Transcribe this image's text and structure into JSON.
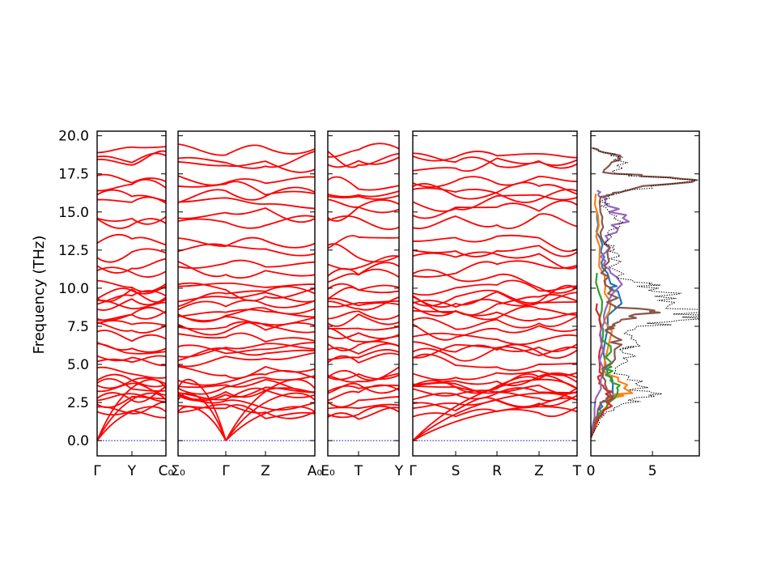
{
  "chart_data": {
    "type": "line",
    "ylabel": "Frequency (THz)",
    "ylim": [
      -1.0,
      20.3
    ],
    "yticks": [
      "0.0",
      "2.5",
      "5.0",
      "7.5",
      "10.0",
      "12.5",
      "15.0",
      "17.5",
      "20.0"
    ],
    "ytick_values": [
      0.0,
      2.5,
      5.0,
      7.5,
      10.0,
      12.5,
      15.0,
      17.5,
      20.0
    ],
    "band_color": "#ff0000",
    "zero_line_color": "#0000cc",
    "band_panels": [
      {
        "kpoints": [
          "Γ",
          "Y",
          "C₀"
        ]
      },
      {
        "kpoints": [
          "Σ₀",
          "Γ",
          "Z",
          "A₀"
        ]
      },
      {
        "kpoints": [
          "E₀",
          "T",
          "Y"
        ]
      },
      {
        "kpoints": [
          "Γ",
          "S",
          "R",
          "Z",
          "T"
        ]
      }
    ],
    "band_levels": {
      "optical": [
        1.9,
        2.2,
        2.6,
        2.9,
        3.1,
        3.3,
        3.6,
        3.9,
        4.1,
        4.4,
        5.3,
        5.6,
        5.9,
        6.1,
        6.9,
        7.2,
        7.7,
        8.1,
        8.4,
        8.7,
        9.0,
        9.3,
        9.6,
        9.8,
        10.5,
        11.3,
        11.8,
        12.4,
        13.0,
        14.4,
        15.0,
        15.7,
        16.1,
        16.4,
        17.0,
        18.2,
        18.5,
        19.0
      ]
    },
    "dos": {
      "xlim": [
        0,
        8.8
      ],
      "xticks": [
        "0",
        "5"
      ],
      "xtick_values": [
        0,
        5
      ],
      "total_color": "#000000",
      "series": [
        {
          "color": "#1f77b4",
          "values": [
            [
              0.0,
              0.2
            ],
            [
              0.6,
              1.5
            ],
            [
              1.0,
              2.6
            ],
            [
              1.8,
              3.0
            ],
            [
              1.2,
              5.0
            ],
            [
              2.2,
              9.8
            ],
            [
              1.6,
              10.3
            ],
            [
              0.8,
              12.4
            ],
            [
              0.5,
              15.0
            ]
          ]
        },
        {
          "color": "#ff7f0e",
          "values": [
            [
              0.0,
              0.2
            ],
            [
              0.6,
              1.5
            ],
            [
              1.3,
              2.7
            ],
            [
              3.2,
              3.2
            ],
            [
              1.1,
              4.6
            ],
            [
              1.5,
              8.5
            ],
            [
              0.7,
              12.0
            ],
            [
              0.4,
              16.2
            ]
          ]
        },
        {
          "color": "#2ca02c",
          "values": [
            [
              0.0,
              0.2
            ],
            [
              0.7,
              1.8
            ],
            [
              2.2,
              3.3
            ],
            [
              1.2,
              4.3
            ],
            [
              1.7,
              5.1
            ],
            [
              1.0,
              7.3
            ],
            [
              0.5,
              11.0
            ]
          ]
        },
        {
          "color": "#d62728",
          "values": [
            [
              0.0,
              0.2
            ],
            [
              0.5,
              1.2
            ],
            [
              1.8,
              2.8
            ],
            [
              1.0,
              3.6
            ],
            [
              0.7,
              4.5
            ],
            [
              0.9,
              6.5
            ],
            [
              0.5,
              9.0
            ]
          ]
        },
        {
          "color": "#9467bd",
          "values": [
            [
              0.0,
              0.3
            ],
            [
              0.8,
              4.0
            ],
            [
              1.1,
              7.8
            ],
            [
              2.2,
              10.0
            ],
            [
              1.0,
              11.5
            ],
            [
              1.4,
              13.2
            ],
            [
              2.6,
              14.6
            ],
            [
              1.2,
              15.8
            ],
            [
              0.5,
              16.4
            ]
          ]
        },
        {
          "color": "#8c564b",
          "values": [
            [
              0.0,
              0.2
            ],
            [
              0.8,
              2.4
            ],
            [
              1.6,
              3.0
            ],
            [
              1.0,
              4.4
            ],
            [
              2.5,
              6.3
            ],
            [
              1.2,
              7.2
            ],
            [
              2.0,
              7.7
            ],
            [
              5.6,
              8.4
            ],
            [
              2.0,
              8.8
            ],
            [
              1.1,
              10.5
            ],
            [
              1.4,
              12.0
            ],
            [
              1.0,
              14.0
            ],
            [
              0.8,
              16.0
            ],
            [
              2.4,
              16.3
            ],
            [
              8.5,
              17.1
            ],
            [
              1.0,
              17.6
            ],
            [
              2.2,
              18.6
            ],
            [
              0.1,
              19.2
            ]
          ]
        }
      ],
      "total": [
        [
          0.0,
          0.2
        ],
        [
          1.0,
          1.6
        ],
        [
          2.5,
          2.4
        ],
        [
          5.2,
          2.9
        ],
        [
          3.5,
          3.4
        ],
        [
          4.2,
          3.9
        ],
        [
          2.0,
          4.5
        ],
        [
          3.0,
          5.3
        ],
        [
          2.3,
          6.0
        ],
        [
          4.0,
          6.2
        ],
        [
          3.0,
          7.2
        ],
        [
          6.5,
          7.8
        ],
        [
          8.8,
          8.4
        ],
        [
          6.2,
          8.8
        ],
        [
          7.0,
          9.6
        ],
        [
          5.5,
          10.0
        ],
        [
          3.5,
          10.4
        ],
        [
          2.0,
          11.2
        ],
        [
          2.1,
          12.3
        ],
        [
          1.2,
          13.0
        ],
        [
          2.3,
          14.2
        ],
        [
          1.5,
          15.0
        ],
        [
          1.0,
          15.8
        ],
        [
          2.5,
          16.3
        ],
        [
          8.8,
          17.1
        ],
        [
          2.0,
          17.5
        ],
        [
          2.6,
          18.6
        ],
        [
          0.1,
          19.2
        ]
      ]
    }
  }
}
